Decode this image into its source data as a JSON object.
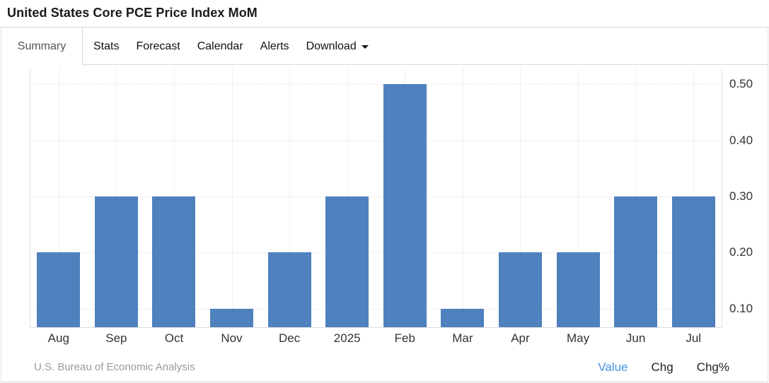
{
  "page": {
    "title": "United States Core PCE Price Index MoM"
  },
  "tabs": {
    "items": [
      {
        "label": "Summary",
        "active": true
      },
      {
        "label": "Stats"
      },
      {
        "label": "Forecast"
      },
      {
        "label": "Calendar"
      },
      {
        "label": "Alerts"
      },
      {
        "label": "Download",
        "has_caret": true
      }
    ]
  },
  "chart_data": {
    "type": "bar",
    "title": "United States Core PCE Price Index MoM",
    "categories": [
      "Aug",
      "Sep",
      "Oct",
      "Nov",
      "Dec",
      "2025",
      "Feb",
      "Mar",
      "Apr",
      "May",
      "Jun",
      "Jul"
    ],
    "values": [
      0.2,
      0.3,
      0.3,
      0.1,
      0.2,
      0.3,
      0.5,
      0.1,
      0.2,
      0.2,
      0.3,
      0.3
    ],
    "series_name": "Value",
    "xlabel": "",
    "ylabel": "",
    "yticks": [
      0.1,
      0.2,
      0.3,
      0.4,
      0.5
    ],
    "ytick_labels": [
      "0.10",
      "0.20",
      "0.30",
      "0.40",
      "0.50"
    ],
    "ylim": [
      0.067,
      0.528
    ],
    "y_axis_side": "right",
    "grid": "dotted-horizontal-and-vertical-at-category-centers",
    "legend": "none",
    "bar_color": "#4e81bd"
  },
  "footer": {
    "source": "U.S. Bureau of Economic Analysis",
    "links": [
      {
        "label": "Value",
        "active": true
      },
      {
        "label": "Chg"
      },
      {
        "label": "Chg%"
      }
    ]
  },
  "colors": {
    "bar": "#4e81bd",
    "active_link": "#4a90e2",
    "grid": "#e2e2e2",
    "border": "#d8d8d8",
    "axis_text": "#333333",
    "source_text": "#9a9a9a"
  }
}
